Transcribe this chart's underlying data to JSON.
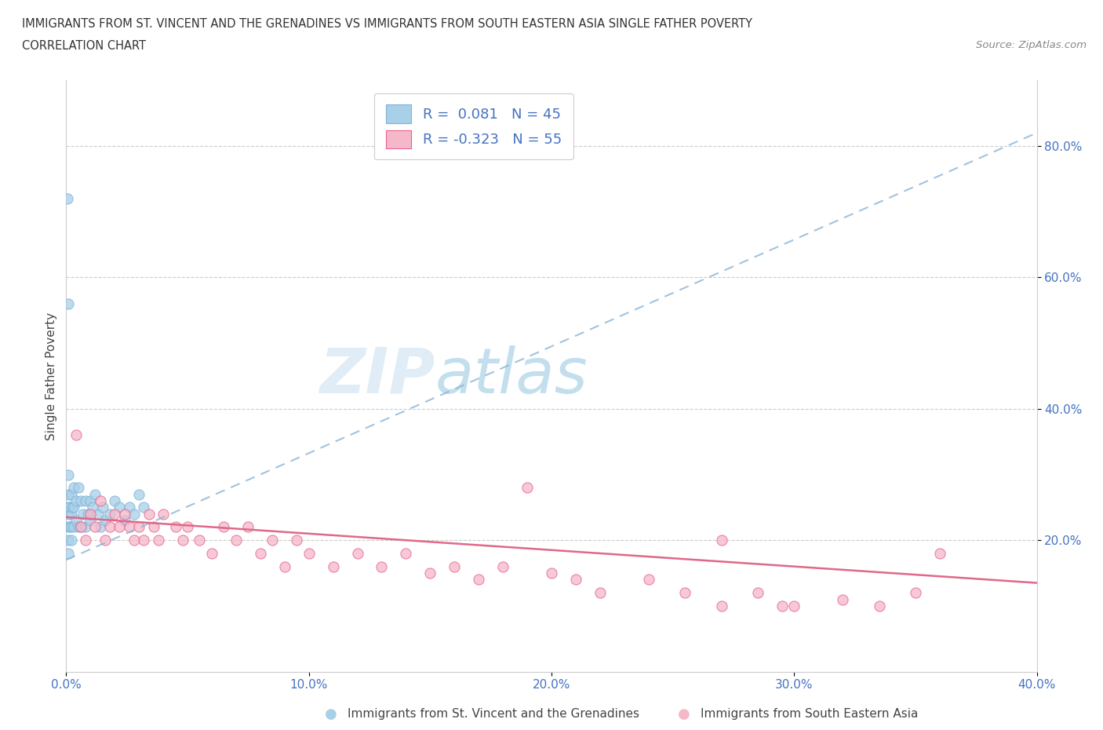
{
  "title_line1": "IMMIGRANTS FROM ST. VINCENT AND THE GRENADINES VS IMMIGRANTS FROM SOUTH EASTERN ASIA SINGLE FATHER POVERTY",
  "title_line2": "CORRELATION CHART",
  "source_text": "Source: ZipAtlas.com",
  "ylabel": "Single Father Poverty",
  "watermark_zip": "ZIP",
  "watermark_atlas": "atlas",
  "legend_r1": "R =  0.081   N = 45",
  "legend_r2": "R = -0.323   N = 55",
  "r1": 0.081,
  "r2": -0.323,
  "xlim": [
    0.0,
    0.4
  ],
  "ylim": [
    0.0,
    0.9
  ],
  "yticks": [
    0.2,
    0.4,
    0.6,
    0.8
  ],
  "xticks": [
    0.0,
    0.1,
    0.2,
    0.3,
    0.4
  ],
  "color_blue": "#a8d0e8",
  "color_pink": "#f5b8c8",
  "line_blue": "#7eb3d8",
  "line_pink": "#e86090",
  "trend_blue": "#8ab4d8",
  "trend_pink": "#e06888",
  "blue_scatter_x": [
    0.0005,
    0.0008,
    0.001,
    0.001,
    0.001,
    0.001,
    0.001,
    0.001,
    0.001,
    0.0012,
    0.0015,
    0.002,
    0.002,
    0.002,
    0.002,
    0.0025,
    0.003,
    0.003,
    0.003,
    0.004,
    0.004,
    0.005,
    0.005,
    0.006,
    0.006,
    0.007,
    0.008,
    0.008,
    0.009,
    0.01,
    0.01,
    0.011,
    0.012,
    0.013,
    0.014,
    0.015,
    0.016,
    0.018,
    0.02,
    0.022,
    0.024,
    0.026,
    0.028,
    0.03,
    0.032
  ],
  "blue_scatter_y": [
    0.72,
    0.56,
    0.25,
    0.22,
    0.2,
    0.18,
    0.3,
    0.27,
    0.24,
    0.25,
    0.22,
    0.27,
    0.24,
    0.22,
    0.2,
    0.25,
    0.28,
    0.25,
    0.22,
    0.26,
    0.23,
    0.28,
    0.22,
    0.26,
    0.22,
    0.24,
    0.26,
    0.22,
    0.24,
    0.26,
    0.23,
    0.25,
    0.27,
    0.24,
    0.22,
    0.25,
    0.23,
    0.24,
    0.26,
    0.25,
    0.23,
    0.25,
    0.24,
    0.27,
    0.25
  ],
  "pink_scatter_x": [
    0.004,
    0.006,
    0.008,
    0.01,
    0.012,
    0.014,
    0.016,
    0.018,
    0.02,
    0.022,
    0.024,
    0.026,
    0.028,
    0.03,
    0.032,
    0.034,
    0.036,
    0.038,
    0.04,
    0.045,
    0.048,
    0.05,
    0.055,
    0.06,
    0.065,
    0.07,
    0.075,
    0.08,
    0.085,
    0.09,
    0.095,
    0.1,
    0.11,
    0.12,
    0.13,
    0.14,
    0.15,
    0.16,
    0.17,
    0.18,
    0.19,
    0.2,
    0.21,
    0.22,
    0.24,
    0.255,
    0.27,
    0.285,
    0.3,
    0.32,
    0.335,
    0.35,
    0.27,
    0.295,
    0.36
  ],
  "pink_scatter_y": [
    0.36,
    0.22,
    0.2,
    0.24,
    0.22,
    0.26,
    0.2,
    0.22,
    0.24,
    0.22,
    0.24,
    0.22,
    0.2,
    0.22,
    0.2,
    0.24,
    0.22,
    0.2,
    0.24,
    0.22,
    0.2,
    0.22,
    0.2,
    0.18,
    0.22,
    0.2,
    0.22,
    0.18,
    0.2,
    0.16,
    0.2,
    0.18,
    0.16,
    0.18,
    0.16,
    0.18,
    0.15,
    0.16,
    0.14,
    0.16,
    0.28,
    0.15,
    0.14,
    0.12,
    0.14,
    0.12,
    0.1,
    0.12,
    0.1,
    0.11,
    0.1,
    0.12,
    0.2,
    0.1,
    0.18
  ]
}
